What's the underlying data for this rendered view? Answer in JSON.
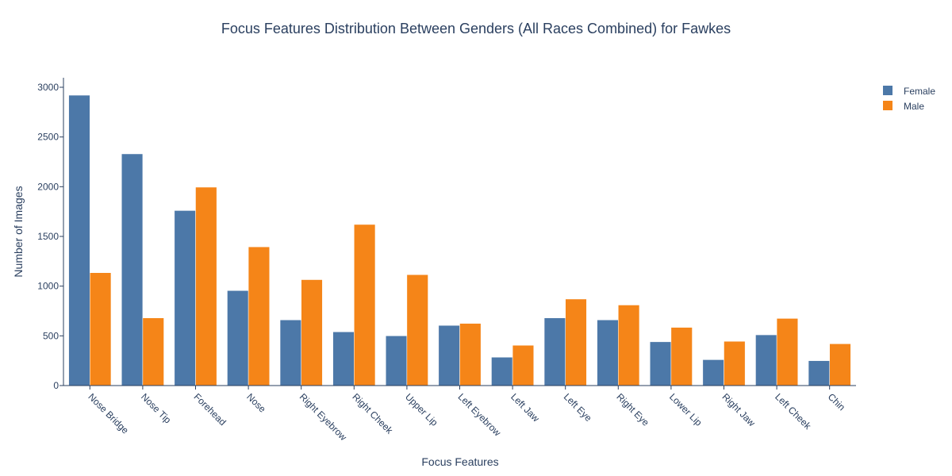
{
  "chart_data": {
    "type": "bar",
    "title": "Focus Features Distribution Between Genders (All Races Combined) for Fawkes",
    "xlabel": "Focus Features",
    "ylabel": "Number of Images",
    "categories": [
      "Nose Bridge",
      "Nose Tip",
      "Forehead",
      "Nose",
      "Right Eyebrow",
      "Right Cheek",
      "Upper Lip",
      "Left Eyebrow",
      "Left Jaw",
      "Left Eye",
      "Right Eye",
      "Lower Lip",
      "Right Jaw",
      "Left Cheek",
      "Chin"
    ],
    "series": [
      {
        "name": "Female",
        "color": "#4c78a8",
        "values": [
          2920,
          2330,
          1760,
          955,
          660,
          540,
          500,
          605,
          285,
          680,
          660,
          440,
          260,
          510,
          250
        ]
      },
      {
        "name": "Male",
        "color": "#f58518",
        "values": [
          1135,
          680,
          1995,
          1395,
          1065,
          1620,
          1115,
          625,
          405,
          870,
          810,
          585,
          445,
          675,
          420
        ]
      }
    ],
    "ylim": [
      0,
      3000
    ],
    "yticks": [
      0,
      500,
      1000,
      1500,
      2000,
      2500,
      3000
    ],
    "grid": false,
    "legend_position": "top-right"
  }
}
